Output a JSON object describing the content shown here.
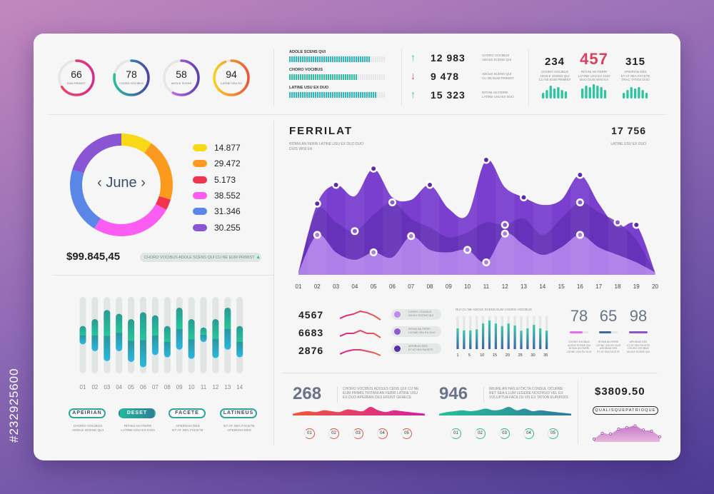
{
  "watermark_id": "#232925600",
  "gauges": [
    {
      "value": "66",
      "label": "EUM PRIMIST",
      "pct": 66,
      "colors": [
        "#f0475f",
        "#d62a8c"
      ]
    },
    {
      "value": "78",
      "label": "CHORO VOCIBUS",
      "pct": 78,
      "colors": [
        "#25c09a",
        "#4b44a8"
      ]
    },
    {
      "value": "58",
      "label": "ADOLE SCENS",
      "pct": 58,
      "colors": [
        "#e873f2",
        "#5a3fb0"
      ]
    },
    {
      "value": "94",
      "label": "LATINE USU EX",
      "pct": 94,
      "colors": [
        "#f6d21e",
        "#f0523a"
      ]
    }
  ],
  "progress_bars": [
    {
      "label": "ADOLE SCENS QUI",
      "fraction": 0.83
    },
    {
      "label": "CHORO VOCIBUS",
      "fraction": 0.7
    },
    {
      "label": "LATINE USU EX DUO",
      "fraction": 0.89
    }
  ],
  "trend_stats": [
    {
      "direction": "up",
      "arrow": "↑",
      "value": "12 983",
      "desc1": "CHORO VOCIBUS",
      "desc2": "ADOLE SCENS QUI"
    },
    {
      "direction": "down",
      "arrow": "↓",
      "value": "9 478",
      "desc1": "ADOLE SCENS QUI",
      "desc2": "CU NE EUM PRIMIST"
    },
    {
      "direction": "up",
      "arrow": "↑",
      "value": "15 323",
      "desc1": "RITANI AN FERRI",
      "desc2": "LATINE USU EX DUO"
    }
  ],
  "kpis": [
    {
      "value": "234",
      "d1": "CHORO VOCIBUS",
      "d2": "ADOLE SCENS QUI",
      "d3": "CU NE EUM PRIMIST",
      "bars": [
        4,
        6,
        9,
        7,
        8,
        6,
        5
      ],
      "highlight": false
    },
    {
      "value": "457",
      "d1": "RITANI AN FERRI",
      "d2": "LATINE USU EX DUO",
      "d3": "DUO DUIS WISI EA",
      "bars": [
        7,
        9,
        8,
        10,
        9,
        8,
        6
      ],
      "highlight": true
    },
    {
      "value": "315",
      "d1": "APEIRIAN DES",
      "d2": "ET AT SEA FACETE",
      "d3": "TRAC TATOS DUO",
      "bars": [
        4,
        6,
        8,
        7,
        8,
        6,
        4
      ],
      "highlight": false
    }
  ],
  "donut": {
    "center_label": "June",
    "prev": "‹",
    "next": "›",
    "total": "$99.845,45",
    "note": "CHORO VOCIBUS ADOLE SCENS QUI CU NE EUM PRIMIST",
    "note_icon": "▲"
  },
  "chart_data": [
    {
      "type": "pie",
      "title": "June",
      "values": [
        14.877,
        29.472,
        5.173,
        38.552,
        31.346,
        30.255
      ],
      "labels": [
        "14.877",
        "29.472",
        "5.173",
        "38.552",
        "31.346",
        "30.255"
      ],
      "colors": [
        "#f7d917",
        "#fb9a1d",
        "#f2334d",
        "#fb5cf2",
        "#5a86e8",
        "#8a55d2"
      ]
    },
    {
      "type": "area",
      "title": "FERRILAT",
      "subtitle": "RITANI AN FERRI LATINE USU EX DUO DUO DUIS WISI EA",
      "headline": "17 756",
      "headline_label": "LATINE USU EX DUO",
      "x": [
        "01",
        "02",
        "03",
        "04",
        "05",
        "06",
        "07",
        "08",
        "09",
        "10",
        "11",
        "12",
        "13",
        "14",
        "15",
        "16",
        "17",
        "18",
        "19",
        "20"
      ],
      "ylim": [
        0,
        100
      ],
      "series": [
        {
          "name": "top",
          "color": "#7b3fd0",
          "values": [
            2,
            57,
            72,
            63,
            85,
            62,
            60,
            72,
            53,
            48,
            92,
            70,
            62,
            56,
            60,
            80,
            57,
            38,
            40,
            2
          ],
          "markers": [
            2,
            3,
            5,
            8,
            11,
            13,
            16,
            19
          ]
        },
        {
          "name": "middle",
          "color": "#6330b5",
          "values": [
            2,
            52,
            42,
            35,
            48,
            58,
            45,
            38,
            30,
            34,
            42,
            40,
            45,
            32,
            45,
            58,
            50,
            42,
            28,
            2
          ],
          "markers": [
            4,
            6,
            12,
            16,
            18
          ]
        },
        {
          "name": "low",
          "color": "#b184ea",
          "values": [
            2,
            32,
            18,
            12,
            18,
            14,
            31,
            20,
            18,
            20,
            10,
            33,
            24,
            16,
            22,
            32,
            22,
            16,
            10,
            2
          ],
          "markers": [
            2,
            5,
            7,
            10,
            11,
            12,
            16
          ]
        }
      ]
    },
    {
      "type": "bar",
      "title": "range bars",
      "categories": [
        "01",
        "02",
        "03",
        "04",
        "05",
        "06",
        "07",
        "08",
        "09",
        "10",
        "11",
        "12",
        "13",
        "14"
      ],
      "ylim": [
        0,
        100
      ],
      "ranges": [
        [
          38,
          62
        ],
        [
          29,
          71
        ],
        [
          16,
          83
        ],
        [
          29,
          78
        ],
        [
          15,
          71
        ],
        [
          8,
          80
        ],
        [
          24,
          76
        ],
        [
          21,
          62
        ],
        [
          31,
          86
        ],
        [
          19,
          71
        ],
        [
          41,
          60
        ],
        [
          20,
          71
        ],
        [
          31,
          86
        ],
        [
          21,
          62
        ]
      ]
    },
    {
      "type": "bar",
      "title": "DUI CU NE ADOLE SCENS EUM CHORO VOCIBUS",
      "tick_labels": [
        "1",
        "5",
        "10",
        "15",
        "20",
        "25",
        "30",
        "35"
      ],
      "ylim": [
        0,
        1
      ],
      "values": [
        0.63,
        0.57,
        0.57,
        0.6,
        0.78,
        0.87,
        0.78,
        0.7,
        0.78,
        0.72,
        0.56,
        0.63,
        0.74,
        0.63,
        0.56
      ]
    }
  ],
  "range_buttons": [
    {
      "label": "APEIRIAN",
      "active": false,
      "d1": "CHORO VOCIBUS",
      "d2": "ADOLE SCENS QUI"
    },
    {
      "label": "DESET",
      "active": true,
      "d1": "RITANI AN FERRI",
      "d2": "LATINE USU EX DUO"
    },
    {
      "label": "FACETE",
      "active": false,
      "d1": "APEIRIAN DES",
      "d2": "ET AT SEA FACETE"
    },
    {
      "label": "LATINEUS",
      "active": false,
      "d1": "ET AT SEA FACETE",
      "d2": "APEIRIAN DES"
    }
  ],
  "sparks": [
    {
      "value": "4567",
      "points": [
        2,
        4,
        5,
        7,
        6,
        4,
        1
      ]
    },
    {
      "value": "6683",
      "points": [
        2,
        4,
        4,
        6,
        4,
        4,
        1
      ]
    },
    {
      "value": "2876",
      "points": [
        2,
        4,
        5,
        5,
        4,
        3,
        1
      ]
    }
  ],
  "pills": [
    {
      "d1": "CHORO VOCIBUS",
      "d2": "ADOLE SCENS QUI",
      "color": "#c08af0"
    },
    {
      "d1": "RITANI AN FERRI",
      "d2": "LATINE USU EX DUO",
      "color": "#8e5ad6"
    },
    {
      "d1": "APEIRIAN DES",
      "d2": "ET AT SEA FACETE",
      "color": "#5b2fa8"
    }
  ],
  "scores": [
    {
      "value": "78",
      "fraction": 0.7,
      "color": "#e86ef0",
      "d": [
        "CHORO VOCIBUS",
        "ADOLE SCENS QUI",
        "RITANI AN FERRI",
        "LATINE USU EX DUO"
      ]
    },
    {
      "value": "65",
      "fraction": 0.65,
      "color": "#3d6b9c",
      "d": [
        "RITANI AN FERRI",
        "LATINE USU EX DUO",
        "APEIRIAN DES",
        "ET AT SEA FACETE"
      ]
    },
    {
      "value": "98",
      "fraction": 1.0,
      "color": "#8a55c8",
      "d": [
        "APEIRIAN DES",
        "ET AT SEA FACETE",
        "CHORO VOCIBUS",
        "ADOLE SCENS QUI"
      ]
    }
  ],
  "waves": [
    {
      "value": "268",
      "text": [
        "CHORO VOCIBUS ADOLES CENS QUI CU NE",
        "EUM PRIMIS TRITANI AN FERRI LATINE USU",
        "EX DUO APEIRIAN DES ERUNT GRAECE"
      ],
      "colors": [
        "#f0573a",
        "#d81ea0"
      ],
      "steps": [
        "01",
        "02",
        "03",
        "04",
        "05"
      ],
      "ring": "#e0533a",
      "points": [
        1,
        2,
        2.5,
        2,
        3,
        2.5,
        2,
        3.5,
        3,
        2.5,
        5,
        3,
        2,
        3,
        2.5,
        2,
        1.5,
        1
      ]
    },
    {
      "value": "946",
      "text": [
        "IRIURE AN HAS EI DICTA CONSUL OCURRE",
        "RET SEA ILLUM LEGERE NOSTRUD VEL EX",
        "VOLUPTUA FACILISI VIS EX TATION EURIPIDIS"
      ],
      "colors": [
        "#25c09a",
        "#2f7a9a"
      ],
      "steps": [
        "01",
        "02",
        "03",
        "04",
        "05"
      ],
      "ring": "#25b89a",
      "points": [
        1,
        2,
        2.5,
        3,
        2.5,
        3,
        4,
        3,
        3.5,
        5,
        3,
        4,
        2.5,
        3,
        2.5,
        2,
        1.5,
        1
      ]
    }
  ],
  "price": {
    "value": "$3809.50",
    "tag": "QUALISQUEPATRIOQUE",
    "points": [
      1,
      3,
      2.8,
      4.5,
      5,
      5.6,
      4.2,
      3.8,
      1.8
    ]
  }
}
